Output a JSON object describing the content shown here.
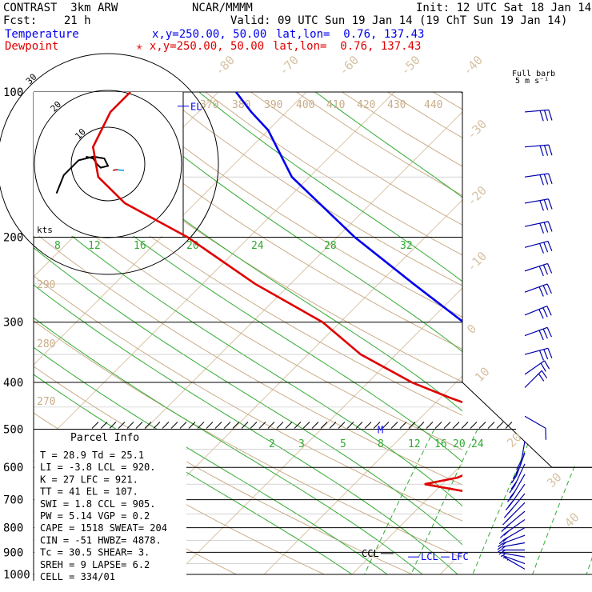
{
  "header": {
    "model": "CONTRAST  3km ARW",
    "center": "NCAR/MMMM",
    "init": "Init: 12 UTC Sat 18 Jan 14",
    "fcst": "Fcst:    21 h",
    "valid": "Valid: 09 UTC Sun 19 Jan 14 (19 ChT Sun 19 Jan 14)",
    "temp_label": "Temperature",
    "temp_xy": "x,y=250.00, 50.00",
    "temp_latlon": "lat,lon=  0.76, 137.43",
    "dew_label": "Dewpoint",
    "dew_xy": "✭ x,y=250.00, 50.00",
    "dew_latlon": "lat,lon=  0.76, 137.43",
    "barb_title": "Full barb",
    "barb_unit": "5 m s⁻¹"
  },
  "chart_data": {
    "type": "line",
    "pressure_levels": [
      "100",
      "200",
      "300",
      "400",
      "500",
      "600",
      "700",
      "800",
      "900",
      "1000"
    ],
    "temp_ticks": [
      "-80",
      "-70",
      "-60",
      "-50",
      "-40",
      "-30",
      "-20",
      "-10",
      "0",
      "10",
      "20",
      "30",
      "40"
    ],
    "theta_labels": [
      "370",
      "380",
      "390",
      "400",
      "410",
      "420",
      "430",
      "440",
      "290",
      "280",
      "270"
    ],
    "mixing_ratio_upper": [
      "8",
      "12",
      "16",
      "20",
      "24",
      "28",
      "32"
    ],
    "mixing_ratio_lower": [
      "2",
      "3",
      "5",
      "8",
      "12",
      "16",
      "20",
      "24"
    ],
    "series": [
      {
        "name": "Temperature",
        "color": "#0000ee",
        "points": [
          [
            1000,
            26
          ],
          [
            960,
            24.5
          ],
          [
            930,
            22
          ],
          [
            900,
            19.5
          ],
          [
            850,
            18
          ],
          [
            800,
            15.5
          ],
          [
            750,
            12.5
          ],
          [
            700,
            10
          ],
          [
            650,
            7
          ],
          [
            600,
            5
          ],
          [
            550,
            2
          ],
          [
            500,
            -2
          ],
          [
            450,
            -6.5
          ],
          [
            400,
            -11
          ],
          [
            350,
            -17.5
          ],
          [
            300,
            -26
          ],
          [
            250,
            -36
          ],
          [
            200,
            -48
          ],
          [
            150,
            -62
          ],
          [
            120,
            -70
          ],
          [
            110,
            -74
          ],
          [
            100,
            -78
          ]
        ]
      },
      {
        "name": "Dewpoint",
        "color": "#e00000",
        "points": [
          [
            1000,
            23.5
          ],
          [
            980,
            23.5
          ],
          [
            960,
            22
          ],
          [
            900,
            19
          ],
          [
            850,
            14
          ],
          [
            800,
            6
          ],
          [
            750,
            1
          ],
          [
            700,
            -1
          ],
          [
            680,
            -5
          ],
          [
            650,
            -12
          ],
          [
            630,
            -9
          ],
          [
            600,
            -7.5
          ],
          [
            550,
            -7.5
          ],
          [
            500,
            -8.5
          ],
          [
            470,
            -11
          ],
          [
            430,
            -19
          ],
          [
            400,
            -25
          ],
          [
            350,
            -34
          ],
          [
            300,
            -42
          ],
          [
            250,
            -54
          ],
          [
            200,
            -67
          ],
          [
            170,
            -78
          ],
          [
            150,
            -84
          ],
          [
            130,
            -88
          ],
          [
            110,
            -90
          ],
          [
            100,
            -90
          ]
        ]
      }
    ],
    "hodograph": {
      "rings": [
        "10",
        "20",
        "30"
      ],
      "unit": "kts",
      "points": [
        [
          -14,
          8
        ],
        [
          -12,
          3
        ],
        [
          -8,
          -1
        ],
        [
          -4,
          -2
        ],
        [
          -1,
          -1.5
        ],
        [
          0,
          0.5
        ],
        [
          -2,
          1
        ],
        [
          -3,
          0
        ],
        [
          -4,
          -1.5
        ],
        [
          -6,
          -2
        ]
      ]
    },
    "markers": {
      "el": "EL",
      "ccl": "CCL",
      "lcl": "LCL",
      "lfc": "LFC",
      "m": "M"
    },
    "parcel_info": {
      "title": "Parcel Info",
      "rows": [
        "T   =   28.9 Td =  25.1",
        "LI  =   -3.8 LCL =  920.",
        "K   =    27 LFC =  921.",
        "TT  =    41 EL  =  107.",
        "SWI =    1.8 CCL =  905.",
        "PW  =   5.14 VGP =   0.2",
        "CAPE =  1518 SWEAT=  204",
        "CIN  =   -51 HWBZ= 4878.",
        "Tc  =   30.5 SHEAR=   3.",
        "SREH =    9 LAPSE=  6.2",
        "CELL = 334/01"
      ]
    },
    "wind_barbs": [
      {
        "p": 110,
        "speed": 15,
        "dir": 265
      },
      {
        "p": 130,
        "speed": 15,
        "dir": 265
      },
      {
        "p": 150,
        "speed": 15,
        "dir": 262
      },
      {
        "p": 170,
        "speed": 15,
        "dir": 260
      },
      {
        "p": 190,
        "speed": 15,
        "dir": 258
      },
      {
        "p": 210,
        "speed": 15,
        "dir": 255
      },
      {
        "p": 235,
        "speed": 15,
        "dir": 252
      },
      {
        "p": 260,
        "speed": 15,
        "dir": 250
      },
      {
        "p": 290,
        "speed": 15,
        "dir": 248
      },
      {
        "p": 320,
        "speed": 15,
        "dir": 250
      },
      {
        "p": 350,
        "speed": 15,
        "dir": 255
      },
      {
        "p": 385,
        "speed": 10,
        "dir": 235
      },
      {
        "p": 410,
        "speed": 10,
        "dir": 225
      },
      {
        "p": 470,
        "speed": 5,
        "dir": 300
      },
      {
        "p": 530,
        "speed": 10,
        "dir": 10
      },
      {
        "p": 560,
        "speed": 10,
        "dir": 20
      },
      {
        "p": 590,
        "speed": 10,
        "dir": 25
      },
      {
        "p": 620,
        "speed": 10,
        "dir": 30
      },
      {
        "p": 650,
        "speed": 10,
        "dir": 35
      },
      {
        "p": 680,
        "speed": 10,
        "dir": 40
      },
      {
        "p": 710,
        "speed": 10,
        "dir": 45
      },
      {
        "p": 740,
        "speed": 10,
        "dir": 50
      },
      {
        "p": 770,
        "speed": 10,
        "dir": 55
      },
      {
        "p": 800,
        "speed": 10,
        "dir": 60
      },
      {
        "p": 830,
        "speed": 10,
        "dir": 70
      },
      {
        "p": 860,
        "speed": 10,
        "dir": 80
      },
      {
        "p": 890,
        "speed": 10,
        "dir": 90
      },
      {
        "p": 920,
        "speed": 10,
        "dir": 100
      },
      {
        "p": 950,
        "speed": 10,
        "dir": 110
      },
      {
        "p": 975,
        "speed": 10,
        "dir": 120
      }
    ]
  }
}
